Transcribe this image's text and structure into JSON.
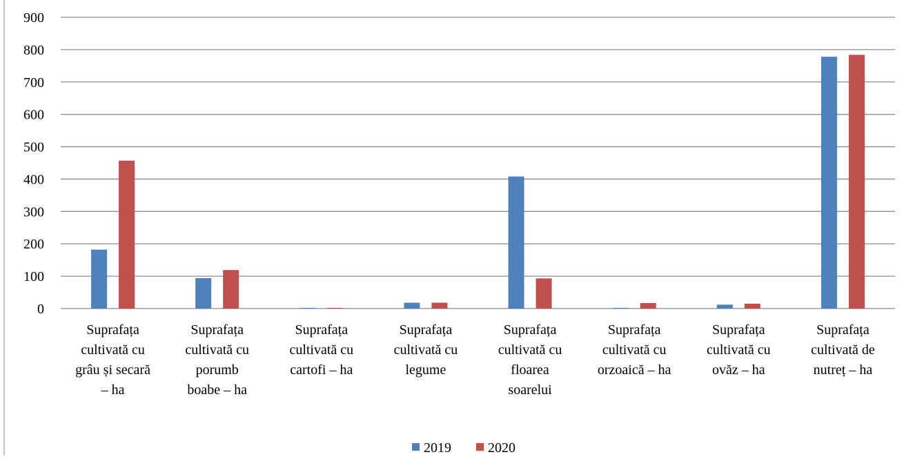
{
  "chart_data": {
    "type": "bar",
    "categories": [
      "Suprafața cultivată cu grâu și secară – ha",
      "Suprafața cultivată cu porumb boabe – ha",
      "Suprafața cultivată cu cartofi – ha",
      "Suprafața cultivată cu legume",
      "Suprafața cultivată cu floarea soarelui",
      "Suprafața cultivată cu orzoaică – ha",
      "Suprafața cultivată cu ovăz – ha",
      "Suprafața cultivată de nutreț – ha"
    ],
    "category_label_lines": [
      [
        "Suprafața",
        "cultivată cu",
        "grâu și secară",
        "– ha"
      ],
      [
        "Suprafața",
        "cultivată cu",
        "porumb",
        "boabe – ha"
      ],
      [
        "Suprafața",
        "cultivată cu",
        "cartofi – ha"
      ],
      [
        "Suprafața",
        "cultivată cu",
        "legume"
      ],
      [
        "Suprafața",
        "cultivată cu",
        "floarea",
        "soarelui"
      ],
      [
        "Suprafața",
        "cultivată cu",
        "orzoaică – ha"
      ],
      [
        "Suprafața",
        "cultivată cu",
        "ovăz – ha"
      ],
      [
        "Suprafața",
        "cultivată de",
        "nutreț – ha"
      ]
    ],
    "series": [
      {
        "name": "2019",
        "color": "#4F81BD",
        "values": [
          182,
          94,
          2,
          18,
          408,
          2,
          12,
          778
        ]
      },
      {
        "name": "2020",
        "color": "#C0504D",
        "values": [
          457,
          119,
          2,
          18,
          93,
          17,
          15,
          784
        ]
      }
    ],
    "ylim": [
      0,
      900
    ],
    "yticks": [
      "0",
      "100",
      "200",
      "300",
      "400",
      "500",
      "600",
      "700",
      "800",
      "900"
    ],
    "grid": true,
    "legend_position": "bottom",
    "title": "",
    "xlabel": "",
    "ylabel": ""
  }
}
